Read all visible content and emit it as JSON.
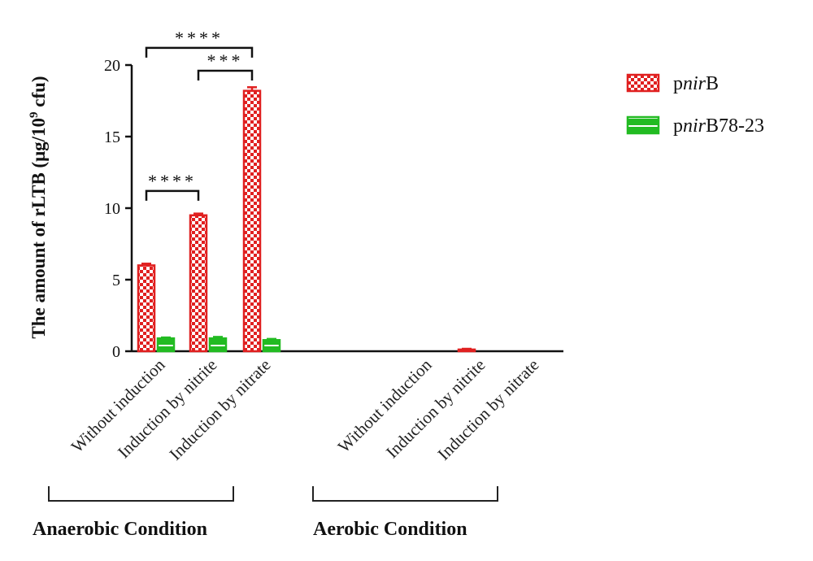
{
  "chart_data": {
    "type": "bar",
    "ylabel_parts": [
      "The amount of rLTB (μg/10",
      "9",
      " cfu)"
    ],
    "ylim": [
      0,
      20
    ],
    "yticks": [
      "0",
      "5",
      "10",
      "15",
      "20"
    ],
    "groups": [
      {
        "label": "Anaerobic Condition",
        "categories": [
          "Without induction",
          "Induction by nitrite",
          "Induction by nitrate"
        ]
      },
      {
        "label": "Aerobic Condition",
        "categories": [
          "Without induction",
          "Induction by nitrite",
          "Induction by nitrate"
        ]
      }
    ],
    "categories": [
      "Without induction",
      "Induction by nitrite",
      "Induction by nitrate",
      "Without induction",
      "Induction by nitrite",
      "Induction by nitrate"
    ],
    "series": [
      {
        "name_parts": [
          "p",
          "nir",
          "B"
        ],
        "color": "#e02020",
        "pattern": "checker",
        "values": [
          6.0,
          9.5,
          18.2,
          0.0,
          0.12,
          0.0
        ],
        "errors": [
          0.12,
          0.12,
          0.25,
          0,
          0.05,
          0
        ]
      },
      {
        "name_parts": [
          "p",
          "nir",
          "B78-23"
        ],
        "color": "#22bb22",
        "pattern": "stripe",
        "values": [
          0.9,
          0.9,
          0.78,
          0.0,
          0.0,
          0.0
        ],
        "errors": [
          0.06,
          0.1,
          0.08,
          0,
          0,
          0
        ]
      }
    ],
    "significance": [
      {
        "from": 0,
        "to": 2,
        "label": "****",
        "y": 21.2
      },
      {
        "from": 1,
        "to": 2,
        "label": "***",
        "y": 19.6
      },
      {
        "from": 0,
        "to": 1,
        "label": "****",
        "y": 11.2
      }
    ],
    "legend_position": "right"
  }
}
